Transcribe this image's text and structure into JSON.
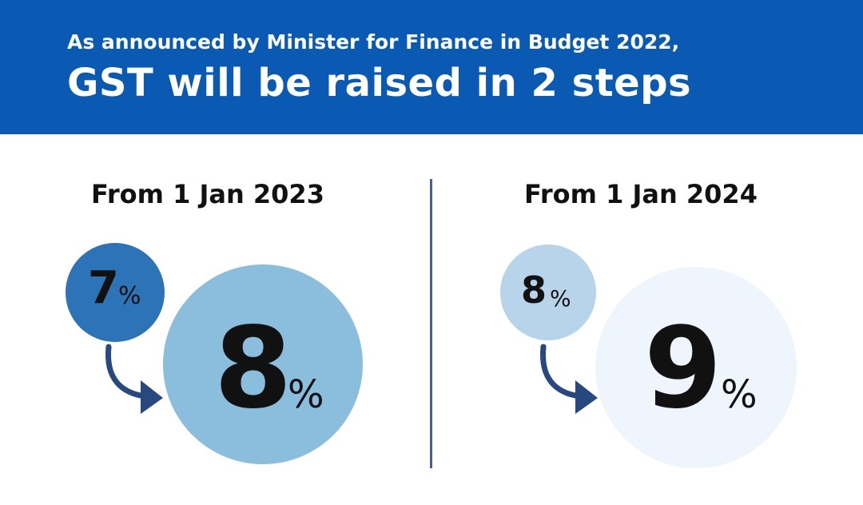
{
  "header": {
    "subtitle": "As announced by Minister for Finance in Budget 2022,",
    "title": "GST will be raised in 2 steps"
  },
  "steps": [
    {
      "date_label": "From 1 Jan 2023",
      "from_value": "7",
      "to_value": "8",
      "percent_sign": "%"
    },
    {
      "date_label": "From 1 Jan 2024",
      "from_value": "8",
      "to_value": "9",
      "percent_sign": "%"
    }
  ],
  "colors": {
    "header_bg": "#0a5ab3",
    "step1_small_circle": "#2c73b8",
    "step1_big_circle": "#8bbddc",
    "step2_small_circle": "#b7d4ea",
    "step2_big_circle": "#eef5fc",
    "arrow": "#27497f",
    "divider": "#4a5f8f"
  },
  "icons": [
    "curved-arrow-icon"
  ]
}
